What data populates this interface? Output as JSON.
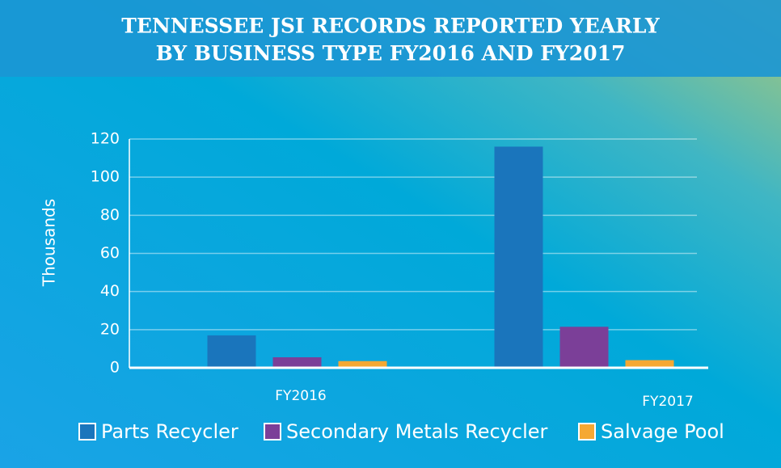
{
  "chart_data": {
    "type": "bar",
    "title": [
      "TENNESSEE JSI RECORDS REPORTED YEARLY",
      "BY BUSINESS TYPE FY2016 AND FY2017"
    ],
    "y_label": "Thousands",
    "categories": [
      "FY2016",
      "FY2017"
    ],
    "series": [
      {
        "name": "Parts Recycler",
        "color": "#1a75bc",
        "values": [
          17,
          116
        ]
      },
      {
        "name": "Secondary Metals Recycler",
        "color": "#7b3f98",
        "values": [
          5.5,
          21.5
        ]
      },
      {
        "name": "Salvage Pool",
        "color": "#f5a833",
        "values": [
          3.5,
          4
        ]
      }
    ],
    "ylim": [
      0,
      120
    ],
    "yticks": [
      0,
      20,
      40,
      60,
      80,
      100,
      120
    ],
    "grid": true,
    "legend": "bottom"
  }
}
